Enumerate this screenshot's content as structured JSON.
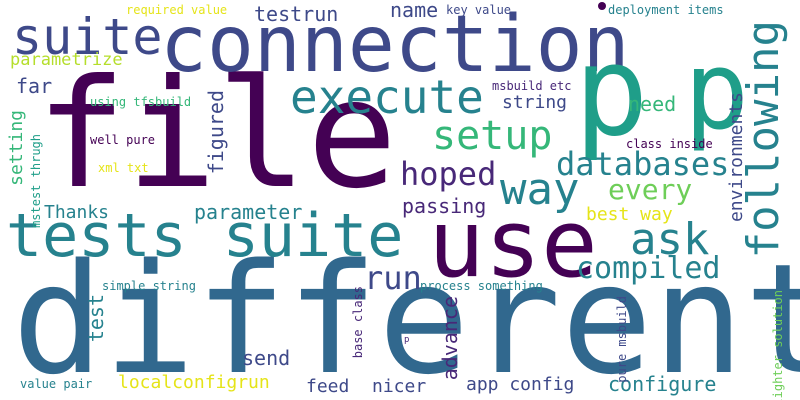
{
  "words": {
    "different": "different",
    "file": "file",
    "connection": "connection",
    "use": "use",
    "tests_suite": "tests suite",
    "p_large": "p",
    "p_second": "p",
    "suite": "suite",
    "execute": "execute",
    "following": "following",
    "setup": "setup",
    "way": "way",
    "ask": "ask",
    "databases": "databases",
    "hoped": "hoped",
    "compiled": "compiled",
    "every": "every",
    "run": "run",
    "environments": "environments",
    "parametrize": "parametrize",
    "testrun": "testrun",
    "name": "name",
    "far": "far",
    "need": "need",
    "string": "string",
    "figured": "figured",
    "setting": "setting",
    "parameter": "parameter",
    "passing": "passing",
    "best_way": "best way",
    "thanks": "Thanks",
    "test": "test",
    "advance": "advance",
    "send": "send",
    "app_config": "app config",
    "configure": "configure",
    "localconfigrun": "localconfigrun",
    "feed": "feed",
    "nicer": "nicer",
    "lighter_solution": "lighter solution",
    "required_value": "required value",
    "key_value": "key value",
    "deployment_items": "deployment items",
    "using_tfsbuild": "using tfsbuild",
    "msbuild_etc": "msbuild etc",
    "well_pure": "well pure",
    "xml_txt": "xml txt",
    "mstest_thrugh": "mstest thrugh",
    "class_inside": "class inside",
    "simple_string": "simple string",
    "process_something": "process something",
    "base_class": "base class",
    "pure_msbuild": "pure msbuild",
    "p_small": "p",
    "value_pair": "value pair"
  },
  "palette": {
    "dark_purple": "#440154",
    "purple": "#482878",
    "indigo": "#3e4989",
    "blue": "#31688e",
    "steel": "#26828e",
    "teal": "#1f9e89",
    "green": "#35b779",
    "lime": "#6ece58",
    "yellow_green": "#b5de2b",
    "yellow": "#e5e419"
  }
}
